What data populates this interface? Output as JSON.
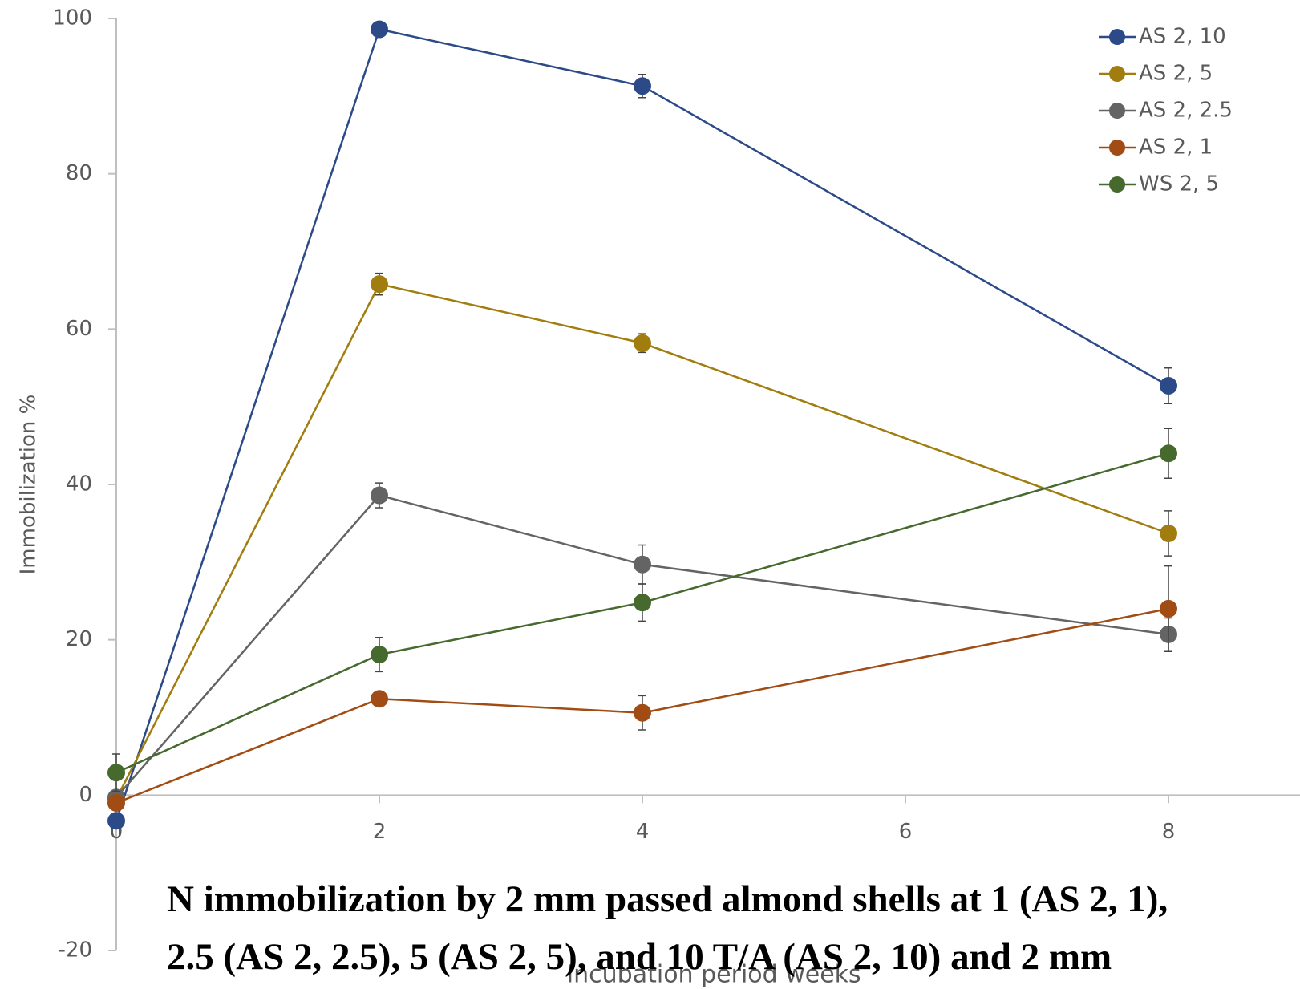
{
  "chart_data": {
    "type": "line",
    "x": [
      0,
      2,
      4,
      8
    ],
    "xlim": [
      0,
      9
    ],
    "xticks": [
      0,
      2,
      4,
      6,
      8
    ],
    "ylim": [
      -20,
      100
    ],
    "yticks": [
      -20,
      0,
      20,
      40,
      60,
      80,
      100
    ],
    "y_label": "Immobilization %",
    "x_label": "Incubation period weeks",
    "legend": "top-right",
    "series": [
      {
        "name": "AS 2, 10",
        "color": "#2b4a87",
        "values": [
          -3.3,
          98.6,
          91.3,
          52.7
        ],
        "errors": [
          0.4,
          0.5,
          1.5,
          2.3
        ]
      },
      {
        "name": "AS 2, 5",
        "color": "#a07d0e",
        "values": [
          -0.5,
          65.8,
          58.2,
          33.7
        ],
        "errors": [
          0.4,
          1.4,
          1.2,
          2.9
        ]
      },
      {
        "name": "AS 2, 2.5",
        "color": "#646464",
        "values": [
          -0.3,
          38.6,
          29.7,
          20.7
        ],
        "errors": [
          0.4,
          1.6,
          2.5,
          2.1
        ]
      },
      {
        "name": "AS 2, 1",
        "color": "#a04c14",
        "values": [
          -1.0,
          12.4,
          10.6,
          24.0
        ],
        "errors": [
          0.4,
          0.6,
          2.2,
          5.5
        ]
      },
      {
        "name": "WS 2, 5",
        "color": "#46692e",
        "values": [
          2.9,
          18.1,
          24.8,
          44.0
        ],
        "errors": [
          2.4,
          2.2,
          2.4,
          3.2
        ]
      }
    ]
  },
  "caption": [
    "N immobilization by 2 mm passed almond shells at 1 (AS 2, 1),",
    "2.5 (AS 2, 2.5), 5 (AS 2, 5), and 10 T/A (AS 2, 10) and 2 mm"
  ]
}
